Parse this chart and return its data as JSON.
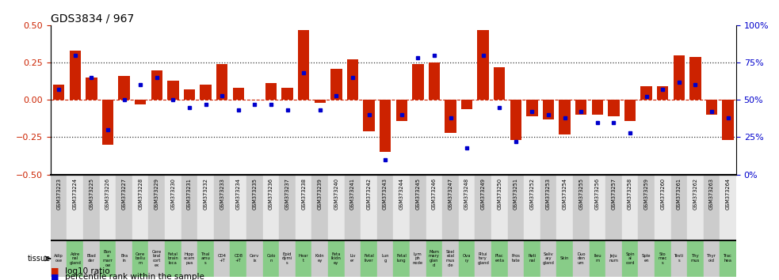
{
  "title": "GDS3834 / 967",
  "gsm_labels": [
    "GSM373223",
    "GSM373224",
    "GSM373225",
    "GSM373226",
    "GSM373227",
    "GSM373228",
    "GSM373229",
    "GSM373230",
    "GSM373231",
    "GSM373232",
    "GSM373233",
    "GSM373234",
    "GSM373235",
    "GSM373236",
    "GSM373237",
    "GSM373238",
    "GSM373239",
    "GSM373240",
    "GSM373241",
    "GSM373242",
    "GSM373243",
    "GSM373244",
    "GSM373245",
    "GSM373246",
    "GSM373247",
    "GSM373248",
    "GSM373249",
    "GSM373250",
    "GSM373251",
    "GSM373252",
    "GSM373253",
    "GSM373254",
    "GSM373255",
    "GSM373256",
    "GSM373257",
    "GSM373258",
    "GSM373259",
    "GSM373260",
    "GSM373261",
    "GSM373262",
    "GSM373263",
    "GSM373264"
  ],
  "tissue_labels_short": [
    "Adip\nose",
    "Adre\nnal\ngland",
    "Blad\nder",
    "Bon\ne\nmarr\now",
    "Bra\nin",
    "Cere\nbellu\nm",
    "Cere\nbral\ncort\nex",
    "Fetal\nbrain\nloca",
    "Hipp\nocam\npus",
    "Thal\namu\ns",
    "CD4\n+T",
    "CD8\n+T",
    "Cerv\nix",
    "Colo\nn",
    "Epid\ndymi\ns",
    "Hear\nt",
    "Kidn\ney",
    "Feta\nlkidn\ney",
    "Liv\ner",
    "Fetal\nliver",
    "Lun\ng",
    "Fetal\nlung",
    "Lym\nph\nnode",
    "Mam\nmary\nglan\nd",
    "Skel\netal\nmus\ncle",
    "Ova\nry",
    "Pitui\ntary\ngland",
    "Plac\nenta",
    "Pros\ntate",
    "Reti\nnal",
    "Saliv\nary\ngland",
    "Skin",
    "Duo\nden\num",
    "Ileu\nm",
    "Jeju\nnum",
    "Spin\nal\ncord",
    "Sple\nen",
    "Sto\nmac\ns",
    "Testi\ns",
    "Thy\nmus",
    "Thyr\noid",
    "Trac\nhea"
  ],
  "log10_ratio": [
    0.1,
    0.33,
    0.15,
    -0.3,
    0.16,
    -0.03,
    0.2,
    0.13,
    0.07,
    0.1,
    0.24,
    0.08,
    0.0,
    0.11,
    0.08,
    0.47,
    -0.02,
    0.21,
    0.27,
    -0.21,
    -0.35,
    -0.14,
    0.24,
    0.25,
    -0.22,
    -0.06,
    0.47,
    0.22,
    -0.27,
    -0.11,
    -0.13,
    -0.23,
    -0.1,
    -0.1,
    -0.11,
    -0.14,
    0.09,
    0.09,
    0.3,
    0.29,
    -0.1,
    -0.27
  ],
  "percentile_rank": [
    57,
    80,
    65,
    30,
    50,
    60,
    65,
    50,
    45,
    47,
    53,
    43,
    47,
    47,
    43,
    68,
    43,
    53,
    65,
    40,
    10,
    40,
    78,
    80,
    38,
    18,
    80,
    45,
    22,
    42,
    40,
    38,
    42,
    35,
    35,
    28,
    52,
    57,
    62,
    60,
    42,
    38
  ],
  "bar_color": "#cc2200",
  "point_color": "#0000cc",
  "ylim": [
    -0.5,
    0.5
  ],
  "yticks_left": [
    -0.5,
    -0.25,
    0.0,
    0.25,
    0.5
  ],
  "right_yticks": [
    0,
    25,
    50,
    75,
    100
  ],
  "hline_dotted": [
    -0.25,
    0.25
  ],
  "bg_color_light": "#cccccc",
  "bg_color_green": "#88cc88",
  "tissue_label": "tissue"
}
